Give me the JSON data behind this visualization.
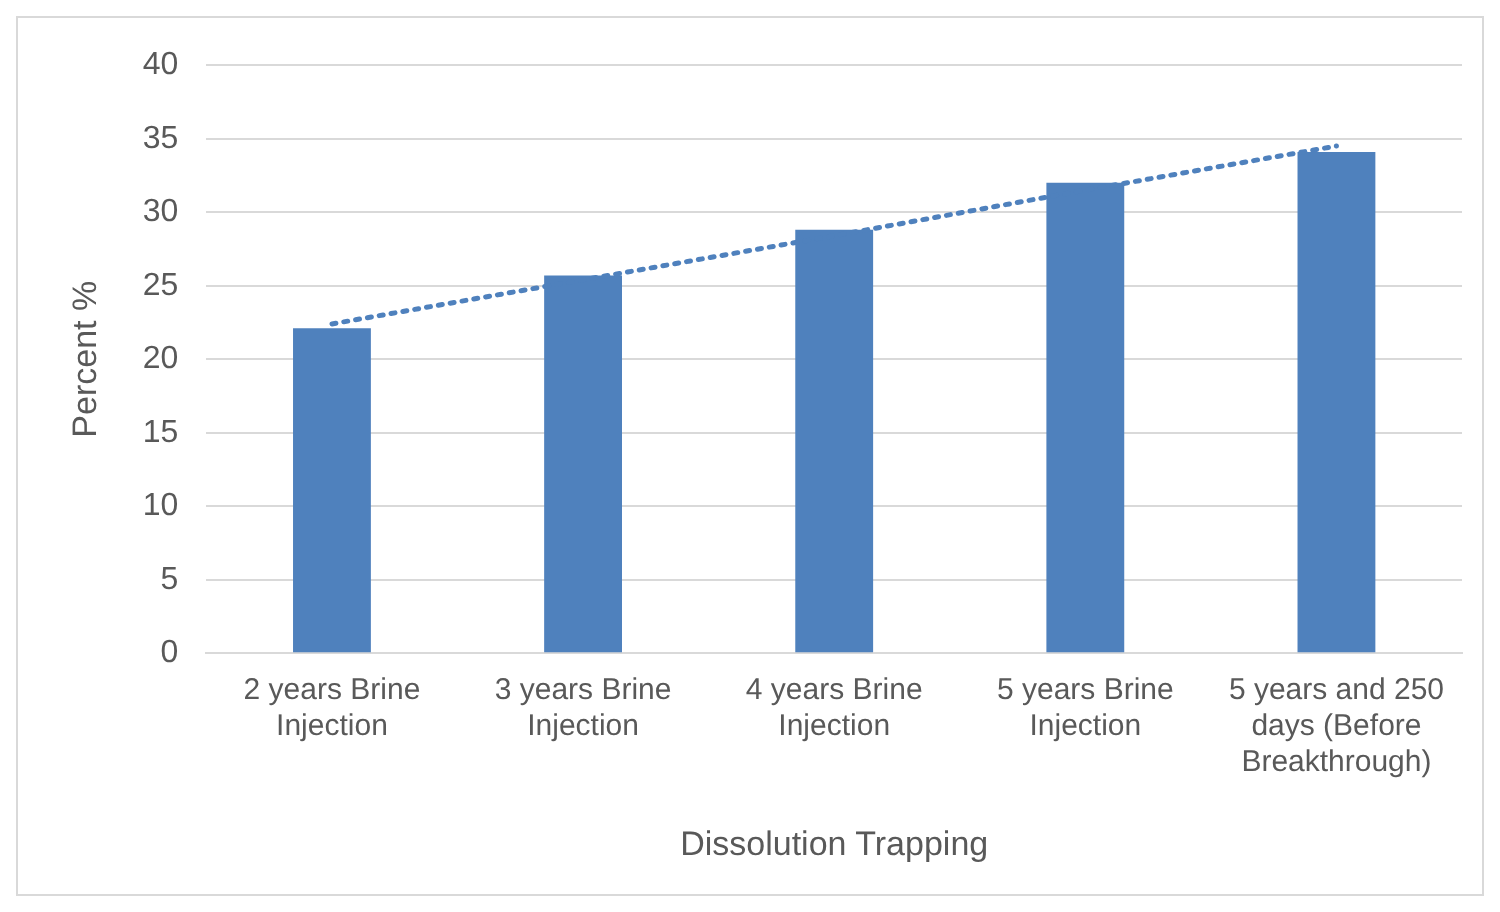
{
  "chart_data": {
    "type": "bar",
    "xlabel": "Dissolution Trapping",
    "ylabel": "Percent %",
    "categories": [
      "2 years Brine Injection",
      "3 years Brine Injection",
      "4 years Brine Injection",
      "5 years Brine Injection",
      "5 years and 250 days (Before Breakthrough)"
    ],
    "series": [
      {
        "color": "#4f81bd",
        "values": [
          22.1,
          25.7,
          28.8,
          32.0,
          34.1
        ]
      },
      {
        "type": "line",
        "color": "#4f81bd",
        "line_style": "dotted",
        "marker": "none",
        "x": [
          "2 years Brine Injection",
          "3 years Brine Injection",
          "4 years Brine Injection",
          "5 years Brine Injection",
          "5 years and 250 days (Before Breakthrough)"
        ],
        "values": [
          22.4,
          25.4,
          28.4,
          31.5,
          34.5
        ]
      }
    ],
    "ylim": [
      0,
      40
    ],
    "yticks": [
      0,
      5,
      10,
      15,
      20,
      25,
      30,
      35,
      40
    ],
    "grid": "y",
    "legend": false
  }
}
